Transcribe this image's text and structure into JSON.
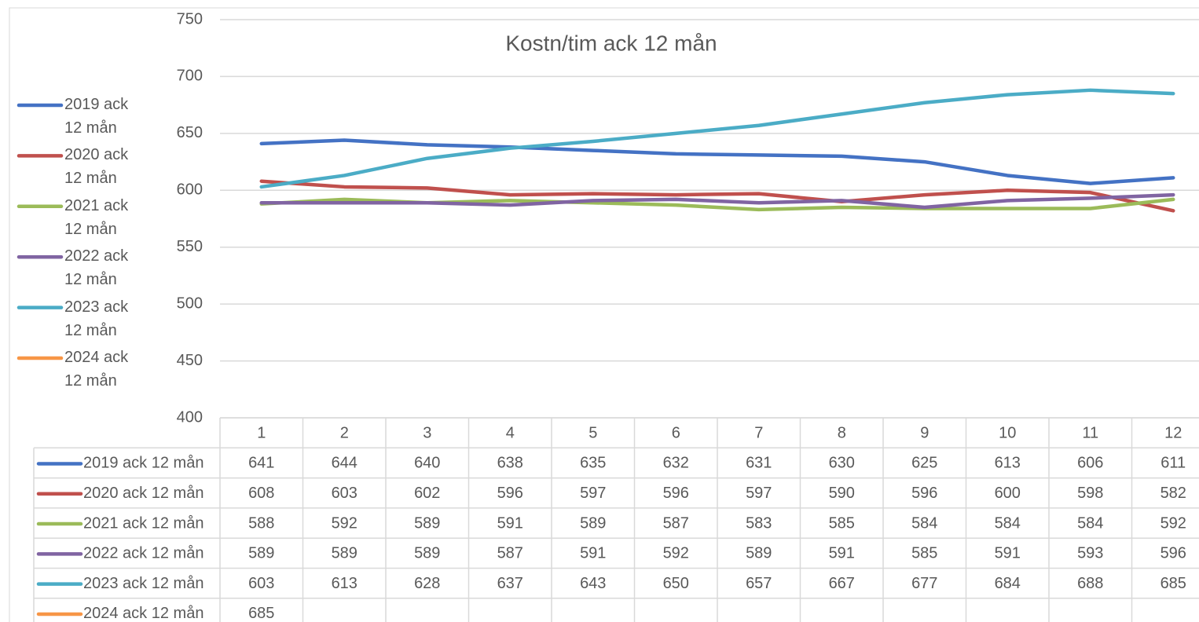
{
  "chart_data": {
    "type": "line",
    "title": "Kostn/tim ack 12 mån",
    "categories": [
      1,
      2,
      3,
      4,
      5,
      6,
      7,
      8,
      9,
      10,
      11,
      12
    ],
    "ylim": [
      400,
      750
    ],
    "yticks": [
      400,
      450,
      500,
      550,
      600,
      650,
      700,
      750
    ],
    "grid": true,
    "legend": "left",
    "data_table": true,
    "series": [
      {
        "name": "2019 ack 12 mån",
        "color": "#4472c4",
        "values": [
          641,
          644,
          640,
          638,
          635,
          632,
          631,
          630,
          625,
          613,
          606,
          611
        ]
      },
      {
        "name": "2020 ack 12 mån",
        "color": "#c0504d",
        "values": [
          608,
          603,
          602,
          596,
          597,
          596,
          597,
          590,
          596,
          600,
          598,
          582
        ]
      },
      {
        "name": "2021 ack 12 mån",
        "color": "#9bbb59",
        "values": [
          588,
          592,
          589,
          591,
          589,
          587,
          583,
          585,
          584,
          584,
          584,
          592
        ]
      },
      {
        "name": "2022 ack 12 mån",
        "color": "#8064a2",
        "values": [
          589,
          589,
          589,
          587,
          591,
          592,
          589,
          591,
          585,
          591,
          593,
          596
        ]
      },
      {
        "name": "2023 ack 12 mån",
        "color": "#4bacc6",
        "values": [
          603,
          613,
          628,
          637,
          643,
          650,
          657,
          667,
          677,
          684,
          688,
          685
        ]
      },
      {
        "name": "2024 ack 12 mån",
        "color": "#f79646",
        "values": [
          685,
          null,
          null,
          null,
          null,
          null,
          null,
          null,
          null,
          null,
          null,
          null
        ]
      }
    ]
  }
}
